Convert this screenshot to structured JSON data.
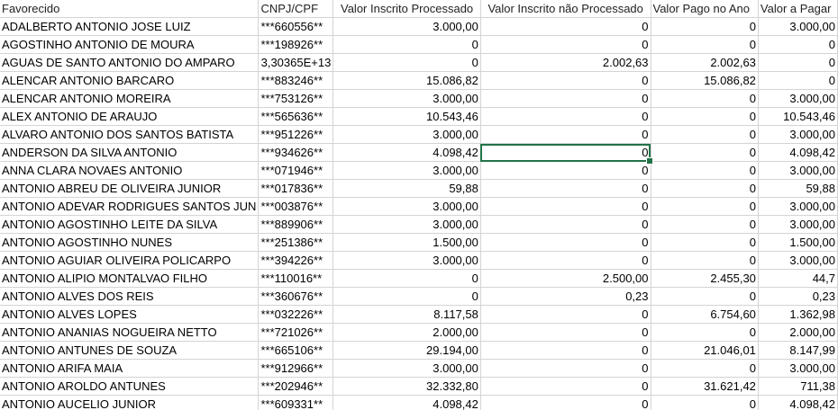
{
  "columns": [
    "Favorecido",
    "CNPJ/CPF",
    "Valor Inscrito Processado",
    "Valor Inscrito não Processado",
    "Valor Pago no Ano",
    "Valor a Pagar"
  ],
  "rows": [
    [
      "ADALBERTO ANTONIO JOSE LUIZ",
      "***660556**",
      "3.000,00",
      "0",
      "0",
      "3.000,00"
    ],
    [
      "AGOSTINHO ANTONIO DE MOURA",
      "***198926**",
      "0",
      "0",
      "0",
      "0"
    ],
    [
      "AGUAS DE SANTO ANTONIO DO AMPARO",
      "3,30365E+13",
      "0",
      "2.002,63",
      "2.002,63",
      "0"
    ],
    [
      "ALENCAR ANTONIO BARCARO",
      "***883246**",
      "15.086,82",
      "0",
      "15.086,82",
      "0"
    ],
    [
      "ALENCAR ANTONIO MOREIRA",
      "***753126**",
      "3.000,00",
      "0",
      "0",
      "3.000,00"
    ],
    [
      "ALEX ANTONIO DE ARAUJO",
      "***565636**",
      "10.543,46",
      "0",
      "0",
      "10.543,46"
    ],
    [
      "ALVARO ANTONIO DOS SANTOS BATISTA",
      "***951226**",
      "3.000,00",
      "0",
      "0",
      "3.000,00"
    ],
    [
      "ANDERSON DA SILVA ANTONIO",
      "***934626**",
      "4.098,42",
      "0",
      "0",
      "4.098,42"
    ],
    [
      "ANNA CLARA NOVAES ANTONIO",
      "***071946**",
      "3.000,00",
      "0",
      "0",
      "3.000,00"
    ],
    [
      "ANTONIO ABREU DE OLIVEIRA JUNIOR",
      "***017836**",
      "59,88",
      "0",
      "0",
      "59,88"
    ],
    [
      "ANTONIO ADEVAR RODRIGUES SANTOS JUN",
      "***003876**",
      "3.000,00",
      "0",
      "0",
      "3.000,00"
    ],
    [
      "ANTONIO AGOSTINHO LEITE DA SILVA",
      "***889906**",
      "3.000,00",
      "0",
      "0",
      "3.000,00"
    ],
    [
      "ANTONIO AGOSTINHO NUNES",
      "***251386**",
      "1.500,00",
      "0",
      "0",
      "1.500,00"
    ],
    [
      "ANTONIO AGUIAR OLIVEIRA POLICARPO",
      "***394226**",
      "3.000,00",
      "0",
      "0",
      "3.000,00"
    ],
    [
      "ANTONIO ALIPIO MONTALVAO FILHO",
      "***110016**",
      "0",
      "2.500,00",
      "2.455,30",
      "44,7"
    ],
    [
      "ANTONIO ALVES DOS REIS",
      "***360676**",
      "0",
      "0,23",
      "0",
      "0,23"
    ],
    [
      "ANTONIO ALVES LOPES",
      "***032226**",
      "8.117,58",
      "0",
      "6.754,60",
      "1.362,98"
    ],
    [
      "ANTONIO ANANIAS NOGUEIRA NETTO",
      "***721026**",
      "2.000,00",
      "0",
      "0",
      "2.000,00"
    ],
    [
      "ANTONIO ANTUNES DE SOUZA",
      "***665106**",
      "29.194,00",
      "0",
      "21.046,01",
      "8.147,99"
    ],
    [
      "ANTONIO ARIFA MAIA",
      "***912966**",
      "3.000,00",
      "0",
      "0",
      "3.000,00"
    ],
    [
      "ANTONIO AROLDO ANTUNES",
      "***202946**",
      "32.332,80",
      "0",
      "31.621,42",
      "711,38"
    ],
    [
      "ANTONIO AUCELIO JUNIOR",
      "***609331**",
      "4.098,42",
      "0",
      "0",
      "4.098,42"
    ]
  ],
  "selected_cell": {
    "row": 7,
    "col": 3
  },
  "colors": {
    "grid": "#d4d4d4",
    "selection": "#217346"
  }
}
